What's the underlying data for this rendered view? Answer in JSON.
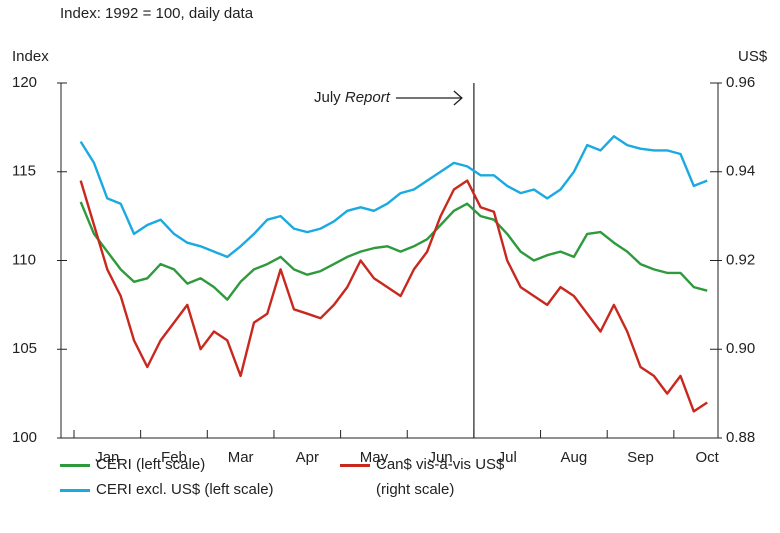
{
  "chart_data": {
    "type": "line",
    "subtitle": "Index: 1992 = 100, daily data",
    "y_label": "Index",
    "y2_label": "US$",
    "annotation": [
      "July",
      "Report"
    ],
    "categories": [
      null,
      null,
      "Jan",
      null,
      null,
      null,
      null,
      "Feb",
      null,
      null,
      null,
      null,
      "Mar",
      null,
      null,
      null,
      null,
      "Apr",
      null,
      null,
      null,
      null,
      "May",
      null,
      null,
      null,
      null,
      "Jun",
      null,
      null,
      null,
      null,
      "Jul",
      null,
      null,
      null,
      null,
      "Aug",
      null,
      null,
      null,
      null,
      "Sep",
      null,
      null,
      null,
      null,
      "Oct"
    ],
    "series": [
      {
        "name": "CERI (left scale)",
        "color": "#2e9a3c",
        "values": [
          113.3,
          111.5,
          110.5,
          109.5,
          108.8,
          109,
          109.8,
          109.5,
          108.7,
          109,
          108.5,
          107.8,
          108.8,
          109.5,
          109.8,
          110.2,
          109.5,
          109.2,
          109.4,
          109.8,
          110.2,
          110.5,
          110.7,
          110.8,
          110.5,
          110.8,
          111.2,
          112,
          112.8,
          113.2,
          112.5,
          112.3,
          111.5,
          110.5,
          110,
          110.3,
          110.5,
          110.2,
          111.5,
          111.6,
          111,
          110.5,
          109.8,
          109.5,
          109.3,
          109.3,
          108.5,
          108.3
        ]
      },
      {
        "name": "CERI excl. US$ (left scale)",
        "color": "#1ba9e1",
        "values": [
          116.7,
          115.5,
          113.5,
          113.2,
          111.5,
          112,
          112.3,
          111.5,
          111,
          110.8,
          110.5,
          110.2,
          110.8,
          111.5,
          112.3,
          112.5,
          111.8,
          111.6,
          111.8,
          112.2,
          112.8,
          113,
          112.8,
          113.2,
          113.8,
          114,
          114.5,
          115,
          115.5,
          115.3,
          114.8,
          114.8,
          114.2,
          113.8,
          114,
          113.5,
          114,
          115,
          116.5,
          116.2,
          117,
          116.5,
          116.3,
          116.2,
          116.2,
          116,
          114.2,
          114.5
        ]
      },
      {
        "name": "Can$ vis-à-vis US$ (right scale)",
        "color": "#c8281e",
        "axis": "y2",
        "values": [
          0.938,
          0.928,
          0.918,
          0.912,
          0.902,
          0.896,
          0.902,
          0.906,
          0.91,
          0.9,
          0.904,
          0.902,
          0.894,
          0.906,
          0.908,
          0.918,
          0.909,
          0.908,
          0.907,
          0.91,
          0.914,
          0.92,
          0.916,
          0.914,
          0.912,
          0.918,
          0.922,
          0.93,
          0.936,
          0.938,
          0.932,
          0.931,
          0.92,
          0.914,
          0.912,
          0.91,
          0.914,
          0.912,
          0.908,
          0.904,
          0.91,
          0.904,
          0.896,
          0.894,
          0.89,
          0.894,
          0.886,
          0.888
        ]
      }
    ],
    "ylim": [
      100,
      120
    ],
    "yticks": [
      100,
      105,
      110,
      115,
      120
    ],
    "y2lim": [
      0.88,
      0.96
    ],
    "y2ticks": [
      0.88,
      {
        "value": 0.9,
        "label": "0.90"
      },
      0.92,
      0.94,
      0.96
    ],
    "grid": false
  }
}
